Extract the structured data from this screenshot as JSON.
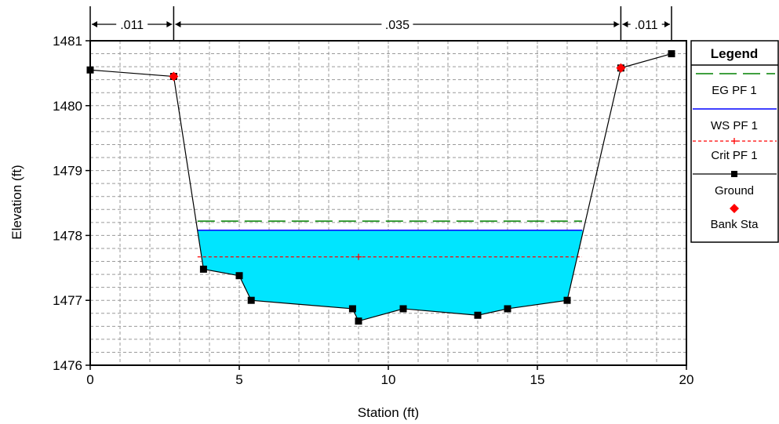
{
  "chart_data": {
    "type": "line",
    "xlabel": "Station (ft)",
    "ylabel": "Elevation (ft)",
    "xlim": [
      0,
      20
    ],
    "ylim": [
      1476,
      1481
    ],
    "xticks": [
      0,
      5,
      10,
      15,
      20
    ],
    "yticks": [
      1476,
      1477,
      1478,
      1479,
      1480,
      1481
    ],
    "grid": true,
    "legend_position": "right",
    "legend_title": "Legend",
    "manning_n": [
      {
        "label": ".011",
        "x_start": 0,
        "x_end": 2.8
      },
      {
        "label": ".035",
        "x_start": 2.8,
        "x_end": 17.8
      },
      {
        "label": ".011",
        "x_start": 17.8,
        "x_end": 19.5
      }
    ],
    "series": [
      {
        "name": "EG PF 1",
        "style": "dash",
        "color": "#008000",
        "x": [
          3.6,
          16.5
        ],
        "y": [
          1478.22,
          1478.22
        ]
      },
      {
        "name": "WS PF 1",
        "style": "solid",
        "color": "#0000ff",
        "fill": "#00e5ff",
        "x": [
          3.6,
          16.5
        ],
        "y": [
          1478.08,
          1478.08
        ]
      },
      {
        "name": "Crit PF 1",
        "style": "dotted-plus",
        "color": "#ff0000",
        "x": [
          3.6,
          9.0,
          16.5
        ],
        "y": [
          1477.67,
          1477.67,
          1477.67
        ]
      },
      {
        "name": "Ground",
        "style": "solid-square",
        "color": "#000000",
        "x": [
          0.0,
          2.8,
          3.8,
          5.0,
          5.4,
          8.8,
          9.0,
          10.5,
          13.0,
          14.0,
          16.0,
          17.8,
          19.5
        ],
        "y": [
          1480.55,
          1480.45,
          1477.48,
          1477.38,
          1477.0,
          1476.87,
          1476.68,
          1476.87,
          1476.77,
          1476.87,
          1477.0,
          1480.58,
          1480.8
        ]
      },
      {
        "name": "Bank Sta",
        "style": "diamond",
        "color": "#ff0000",
        "x": [
          2.8,
          17.8
        ],
        "y": [
          1480.45,
          1480.58
        ]
      }
    ]
  }
}
